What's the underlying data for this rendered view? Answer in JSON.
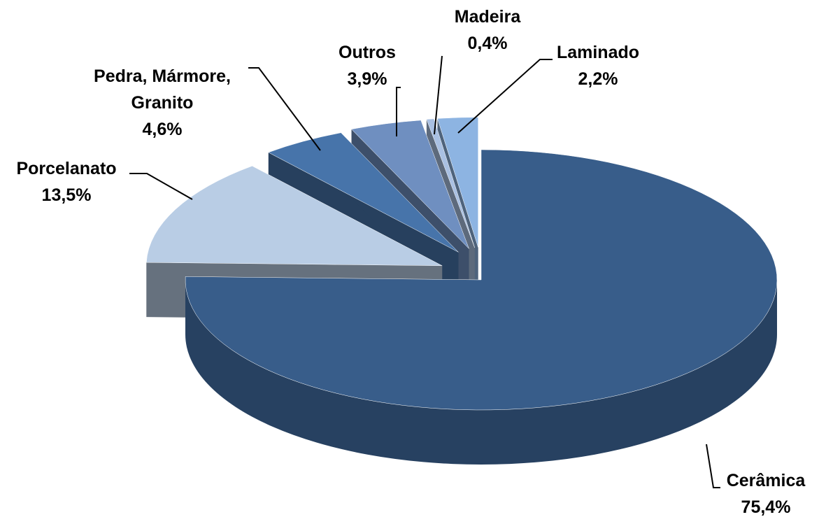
{
  "chart_data": {
    "type": "pie",
    "categories": [
      "Cerâmica",
      "Porcelanato",
      "Pedra, Mármore, Granito",
      "Outros",
      "Madeira",
      "Laminado"
    ],
    "values": [
      75.4,
      13.5,
      4.6,
      3.9,
      0.4,
      2.2
    ],
    "value_labels": [
      "75,4%",
      "13,5%",
      "4,6%",
      "3,9%",
      "0,4%",
      "2,2%"
    ],
    "colors": [
      "#385d8a",
      "#b9cde5",
      "#4774aa",
      "#6f8fc0",
      "#a9c0e2",
      "#8db4e2"
    ]
  }
}
